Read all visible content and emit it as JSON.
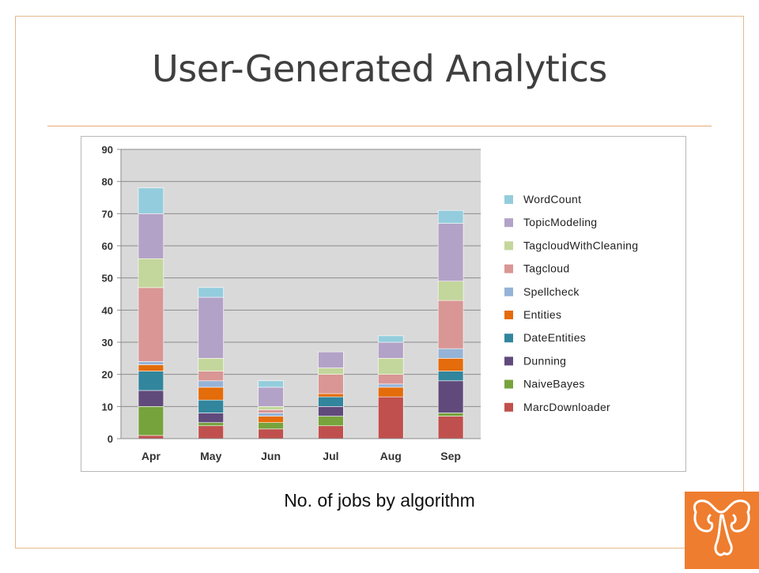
{
  "slide": {
    "title": "User-Generated Analytics",
    "caption": "No. of jobs by algorithm"
  },
  "colors": {
    "accent_rule": "#e8a875",
    "frame": "#e5b98c",
    "logo_bg": "#ee7d2f"
  },
  "logo": {
    "icon": "elephant-logo-icon"
  },
  "chart_data": {
    "type": "bar",
    "stacked": true,
    "categories": [
      "Apr",
      "May",
      "Jun",
      "Jul",
      "Aug",
      "Sep"
    ],
    "ylim": [
      0,
      90
    ],
    "yticks": [
      "0",
      "10",
      "20",
      "30",
      "40",
      "50",
      "60",
      "70",
      "80",
      "90"
    ],
    "grid": true,
    "legend_position": "right",
    "series": [
      {
        "name": "MarcDownloader",
        "color": "#c0504d",
        "values": [
          1,
          4,
          3,
          4,
          13,
          7
        ]
      },
      {
        "name": "NaiveBayes",
        "color": "#77a33c",
        "values": [
          9,
          1,
          2,
          3,
          0,
          1
        ]
      },
      {
        "name": "Dunning",
        "color": "#604a7b",
        "values": [
          5,
          3,
          0,
          3,
          0,
          10
        ]
      },
      {
        "name": "DateEntities",
        "color": "#31859c",
        "values": [
          6,
          4,
          0,
          3,
          0,
          3
        ]
      },
      {
        "name": "Entities",
        "color": "#e46c0a",
        "values": [
          2,
          4,
          2,
          1,
          3,
          4
        ]
      },
      {
        "name": "Spellcheck",
        "color": "#95b3d7",
        "values": [
          1,
          2,
          1,
          0,
          1,
          3
        ]
      },
      {
        "name": "Tagcloud",
        "color": "#d99694",
        "values": [
          23,
          3,
          1,
          6,
          3,
          15
        ]
      },
      {
        "name": "TagcloudWithCleaning",
        "color": "#c3d69b",
        "values": [
          9,
          4,
          1,
          2,
          5,
          6
        ]
      },
      {
        "name": "TopicModeling",
        "color": "#b3a2c7",
        "values": [
          14,
          19,
          6,
          5,
          5,
          18
        ]
      },
      {
        "name": "WordCount",
        "color": "#93cddd",
        "values": [
          8,
          3,
          2,
          0,
          2,
          4
        ]
      }
    ]
  }
}
